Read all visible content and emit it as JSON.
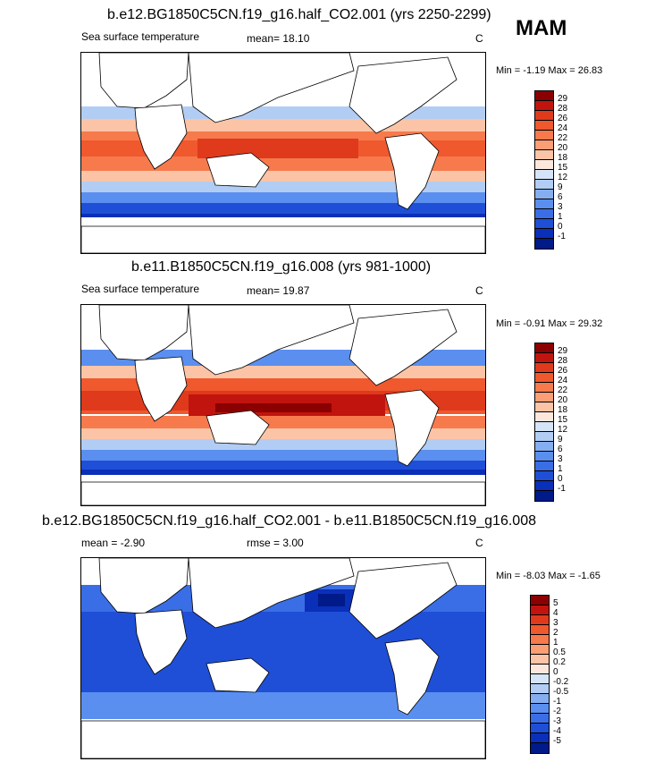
{
  "season": "MAM",
  "panels": [
    {
      "id": "top",
      "title": "b.e12.BG1850C5CN.f19_g16.half_CO2.001 (yrs 2250-2299)",
      "variable": "Sea surface temperature",
      "stat_label": "mean=",
      "stat_value": "18.10",
      "units": "C",
      "min_label": "Min =",
      "min_value": "-1.19",
      "max_label": "Max =",
      "max_value": "26.83",
      "labels": [
        "29",
        "28",
        "26",
        "24",
        "22",
        "20",
        "18",
        "15",
        "12",
        "9",
        "6",
        "3",
        "1",
        "0",
        "-1"
      ],
      "colors": [
        "#8b0000",
        "#c1140f",
        "#e03a1c",
        "#f0582e",
        "#f77a4d",
        "#fb9e76",
        "#fcc4a6",
        "#fde7dc",
        "#d6e4f8",
        "#b2cdf4",
        "#85aef0",
        "#5a8ff0",
        "#3a6ee6",
        "#1f4fd6",
        "#0a2fb8",
        "#001a8a"
      ]
    },
    {
      "id": "middle",
      "title": "b.e11.B1850C5CN.f19_g16.008 (yrs 981-1000)",
      "variable": "Sea surface temperature",
      "stat_label": "mean=",
      "stat_value": "19.87",
      "units": "C",
      "min_label": "Min =",
      "min_value": "-0.91",
      "max_label": "Max =",
      "max_value": "29.32",
      "labels": [
        "29",
        "28",
        "26",
        "24",
        "22",
        "20",
        "18",
        "15",
        "12",
        "9",
        "6",
        "3",
        "1",
        "0",
        "-1"
      ],
      "colors": [
        "#8b0000",
        "#c1140f",
        "#e03a1c",
        "#f0582e",
        "#f77a4d",
        "#fb9e76",
        "#fcc4a6",
        "#fde7dc",
        "#d6e4f8",
        "#b2cdf4",
        "#85aef0",
        "#5a8ff0",
        "#3a6ee6",
        "#1f4fd6",
        "#0a2fb8",
        "#001a8a"
      ]
    },
    {
      "id": "bottom",
      "title": "b.e12.BG1850C5CN.f19_g16.half_CO2.001 - b.e11.B1850C5CN.f19_g16.008",
      "stat_label": "mean =",
      "stat_value": "-2.90",
      "stat2_label": "rmse =",
      "stat2_value": "3.00",
      "units": "C",
      "min_label": "Min =",
      "min_value": "-8.03",
      "max_label": "Max =",
      "max_value": "-1.65",
      "labels": [
        "5",
        "4",
        "3",
        "2",
        "1",
        "0.5",
        "0.2",
        "0",
        "-0.2",
        "-0.5",
        "-1",
        "-2",
        "-3",
        "-4",
        "-5"
      ],
      "colors": [
        "#8b0000",
        "#c1140f",
        "#e03a1c",
        "#f0582e",
        "#f77a4d",
        "#fb9e76",
        "#fcc4a6",
        "#fde7dc",
        "#d6e4f8",
        "#b2cdf4",
        "#85aef0",
        "#5a8ff0",
        "#3a6ee6",
        "#1f4fd6",
        "#0a2fb8",
        "#001a8a"
      ]
    }
  ]
}
